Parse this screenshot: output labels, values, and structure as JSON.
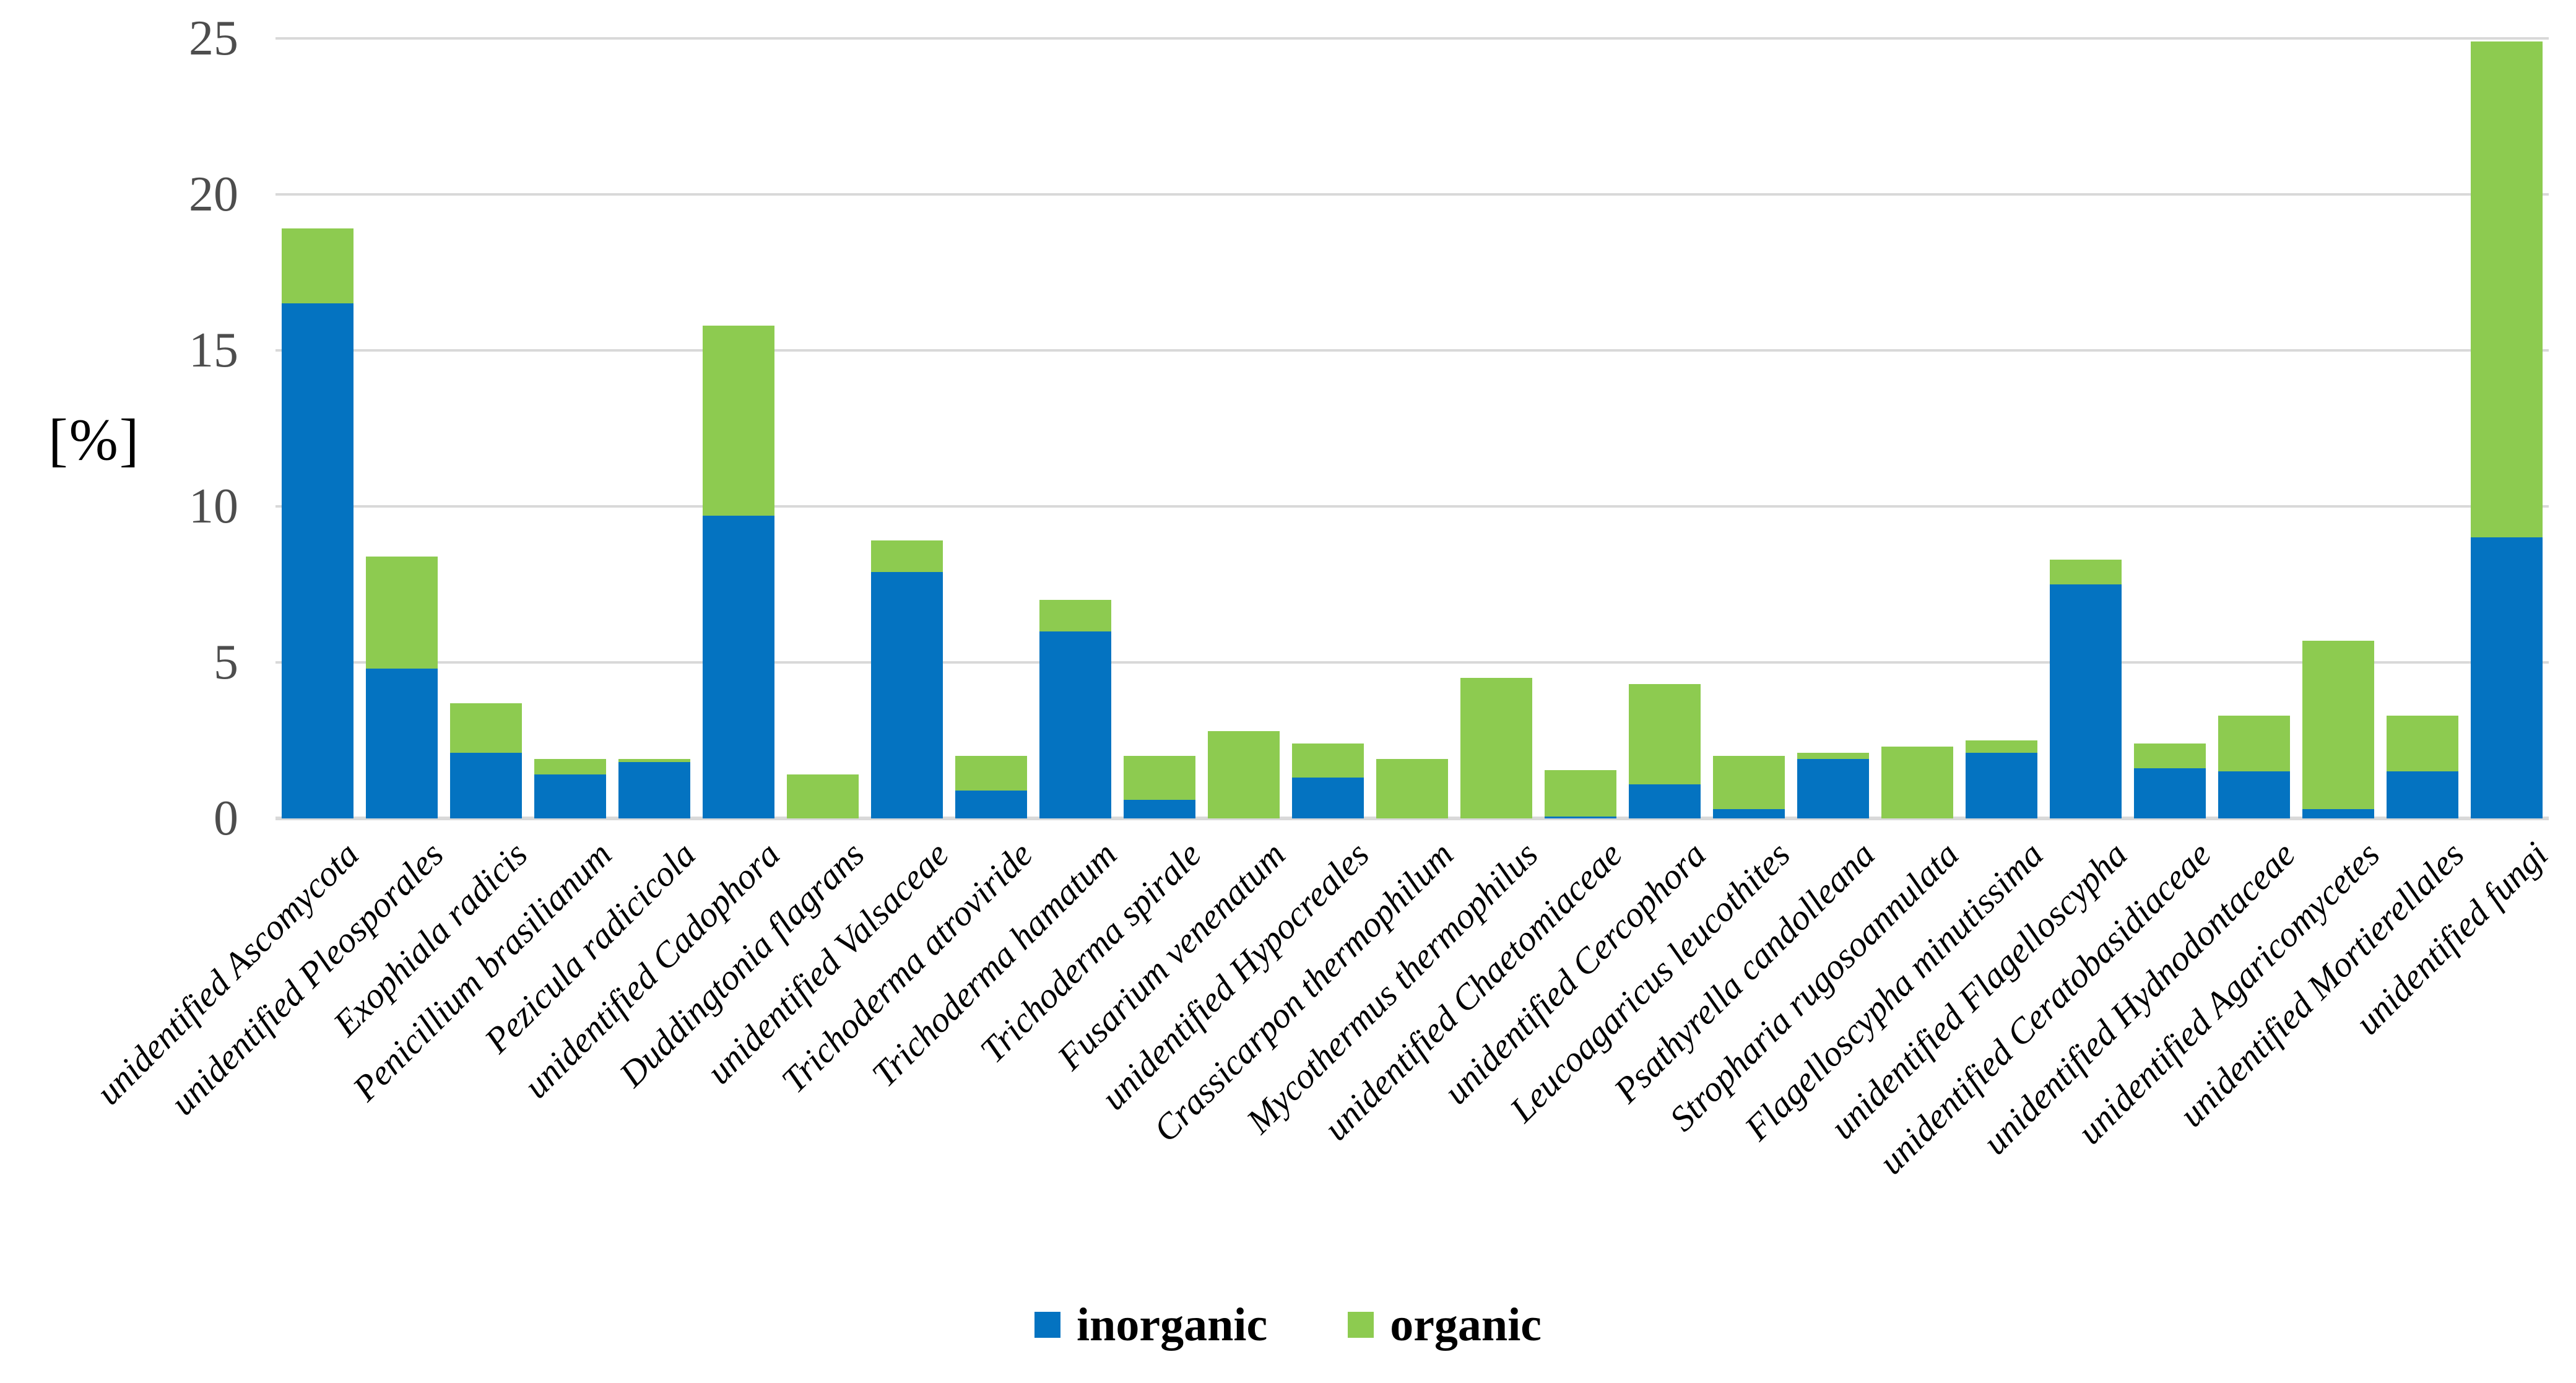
{
  "y_axis": {
    "title": "[%]",
    "tick_labels": [
      "0",
      "5",
      "10",
      "15",
      "20",
      "25"
    ],
    "tick_color": "#4d4d4d",
    "gridline_color": "#d9d9d9"
  },
  "legend": {
    "items": [
      {
        "label": "inorganic",
        "color": "#0473c1"
      },
      {
        "label": "organic",
        "color": "#8dcb50"
      }
    ]
  },
  "chart_data": {
    "type": "bar",
    "stacked": true,
    "title": "",
    "xlabel": "",
    "ylabel": "[%]",
    "ylim": [
      0,
      25
    ],
    "yticks": [
      0,
      5,
      10,
      15,
      20,
      25
    ],
    "grid": true,
    "legend_position": "bottom",
    "categories": [
      "unidentified Ascomycota",
      "unidentified Pleosporales",
      "Exophiala radicis",
      "Penicillium brasilianum",
      "Pezicula radicicola",
      "unidentified Cadophora",
      "Duddingtonia flagrans",
      "unidentified Valsaceae",
      "Trichoderma atroviride",
      "Trichoderma hamatum",
      "Trichoderma spirale",
      "Fusarium venenatum",
      "unidentified Hypocreales",
      "Crassicarpon thermophilum",
      "Mycothermus thermophilus",
      "unidentified Chaetomiaceae",
      "unidentified Cercophora",
      "Leucoagaricus leucothites",
      "Psathyrella candolleana",
      "Stropharia rugosoannulata",
      "Flagelloscypha minutissima",
      "unidentified Flagelloscypha",
      "unidentified Ceratobasidiaceae",
      "unidentified Hydnodontaceae",
      "unidentified Agaricomycetes",
      "unidentified Mortierellales",
      "unidentified fungi"
    ],
    "series": [
      {
        "name": "inorganic",
        "color": "#0473c1",
        "values": [
          16.5,
          4.8,
          2.1,
          1.4,
          1.8,
          9.7,
          0,
          7.9,
          0.9,
          6.0,
          0.6,
          0,
          1.3,
          0,
          0,
          0.05,
          1.1,
          0.3,
          1.9,
          0,
          2.1,
          7.5,
          1.6,
          1.5,
          0.3,
          1.5,
          9.0
        ]
      },
      {
        "name": "organic",
        "color": "#8dcb50",
        "values": [
          2.4,
          3.6,
          1.6,
          0.5,
          0.1,
          6.1,
          1.4,
          1.0,
          1.1,
          1.0,
          1.4,
          2.8,
          1.1,
          1.9,
          4.5,
          1.5,
          3.2,
          1.7,
          0.2,
          2.3,
          0.4,
          0.8,
          0.8,
          1.8,
          5.4,
          1.8,
          15.9
        ]
      }
    ]
  }
}
